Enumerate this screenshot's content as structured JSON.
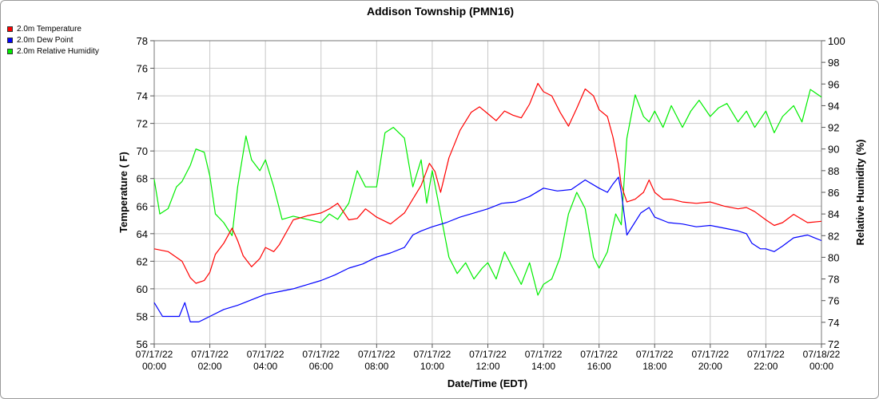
{
  "chart_data": {
    "type": "line",
    "title": "Addison Township (PMN16)",
    "xlabel": "Date/Time (EDT)",
    "ylabel": "Temperature ( F)",
    "y2label": "Relative Humidity (%)",
    "ylim": [
      56,
      78
    ],
    "y2lim": [
      72,
      100
    ],
    "x_ticks": [
      {
        "date": "07/17/22",
        "time": "00:00"
      },
      {
        "date": "07/17/22",
        "time": "02:00"
      },
      {
        "date": "07/17/22",
        "time": "04:00"
      },
      {
        "date": "07/17/22",
        "time": "06:00"
      },
      {
        "date": "07/17/22",
        "time": "08:00"
      },
      {
        "date": "07/17/22",
        "time": "10:00"
      },
      {
        "date": "07/17/22",
        "time": "12:00"
      },
      {
        "date": "07/17/22",
        "time": "14:00"
      },
      {
        "date": "07/17/22",
        "time": "16:00"
      },
      {
        "date": "07/17/22",
        "time": "18:00"
      },
      {
        "date": "07/17/22",
        "time": "20:00"
      },
      {
        "date": "07/17/22",
        "time": "22:00"
      },
      {
        "date": "07/18/22",
        "time": "00:00"
      }
    ],
    "y_ticks": [
      56,
      58,
      60,
      62,
      64,
      66,
      68,
      70,
      72,
      74,
      76,
      78
    ],
    "y2_ticks": [
      72,
      74,
      76,
      78,
      80,
      82,
      84,
      86,
      88,
      90,
      92,
      94,
      96,
      98,
      100
    ],
    "grid": true,
    "legend_position": "top-left",
    "x_unit": "hours",
    "series": [
      {
        "name": "2.0m Temperature",
        "color": "#ff0000",
        "axis": "left",
        "x": [
          0,
          0.5,
          1,
          1.3,
          1.5,
          1.8,
          2,
          2.2,
          2.5,
          2.8,
          3,
          3.2,
          3.5,
          3.8,
          4,
          4.3,
          4.5,
          5,
          5.5,
          6,
          6.3,
          6.6,
          7,
          7.3,
          7.6,
          8,
          8.5,
          9,
          9.3,
          9.6,
          9.9,
          10.1,
          10.3,
          10.6,
          11,
          11.4,
          11.7,
          12,
          12.3,
          12.6,
          12.9,
          13.2,
          13.5,
          13.8,
          14,
          14.3,
          14.6,
          14.9,
          15.2,
          15.5,
          15.8,
          16,
          16.3,
          16.5,
          16.7,
          16.8,
          17,
          17.3,
          17.6,
          17.8,
          18,
          18.3,
          18.6,
          19,
          19.5,
          20,
          20.5,
          21,
          21.3,
          21.6,
          22,
          22.3,
          22.6,
          23,
          23.5,
          24
        ],
        "values": [
          62.9,
          62.7,
          62.0,
          60.8,
          60.4,
          60.6,
          61.2,
          62.5,
          63.3,
          64.4,
          63.5,
          62.4,
          61.6,
          62.2,
          63.0,
          62.7,
          63.2,
          65.0,
          65.3,
          65.5,
          65.8,
          66.2,
          65.0,
          65.1,
          65.8,
          65.2,
          64.7,
          65.5,
          66.5,
          67.5,
          69.1,
          68.5,
          67.0,
          69.5,
          71.5,
          72.8,
          73.2,
          72.7,
          72.2,
          72.9,
          72.6,
          72.4,
          73.4,
          74.9,
          74.3,
          74.0,
          72.8,
          71.8,
          73.1,
          74.5,
          74.0,
          73.0,
          72.5,
          71.0,
          69.0,
          67.5,
          66.3,
          66.5,
          67.0,
          67.9,
          67.0,
          66.5,
          66.5,
          66.3,
          66.2,
          66.3,
          66.0,
          65.8,
          65.9,
          65.6,
          65.0,
          64.6,
          64.8,
          65.4,
          64.8,
          64.9
        ]
      },
      {
        "name": "2.0m Dew Point",
        "color": "#0000ff",
        "axis": "left",
        "x": [
          0,
          0.3,
          0.6,
          0.9,
          1.1,
          1.3,
          1.6,
          2,
          2.5,
          3,
          3.5,
          4,
          4.5,
          5,
          5.5,
          6,
          6.5,
          7,
          7.5,
          8,
          8.5,
          9,
          9.3,
          9.6,
          10,
          10.5,
          11,
          11.5,
          12,
          12.5,
          13,
          13.5,
          14,
          14.5,
          15,
          15.5,
          16,
          16.3,
          16.5,
          16.7,
          16.8,
          17,
          17.5,
          17.8,
          18,
          18.5,
          19,
          19.5,
          20,
          20.5,
          21,
          21.3,
          21.5,
          21.8,
          22,
          22.3,
          22.6,
          23,
          23.5,
          24
        ],
        "values": [
          59.0,
          58.0,
          58.0,
          58.0,
          59.0,
          57.6,
          57.6,
          58.0,
          58.5,
          58.8,
          59.2,
          59.6,
          59.8,
          60.0,
          60.3,
          60.6,
          61.0,
          61.5,
          61.8,
          62.3,
          62.6,
          63.0,
          63.9,
          64.2,
          64.5,
          64.8,
          65.2,
          65.5,
          65.8,
          66.2,
          66.3,
          66.7,
          67.3,
          67.1,
          67.2,
          67.9,
          67.3,
          67.0,
          67.6,
          68.1,
          67.0,
          63.9,
          65.5,
          65.9,
          65.2,
          64.8,
          64.7,
          64.5,
          64.6,
          64.4,
          64.2,
          64.0,
          63.3,
          62.9,
          62.9,
          62.7,
          63.1,
          63.7,
          63.9,
          63.5
        ]
      },
      {
        "name": "2.0m Relative Humidity",
        "color": "#00ee00",
        "axis": "right",
        "x": [
          0,
          0.2,
          0.5,
          0.8,
          1,
          1.3,
          1.5,
          1.8,
          2,
          2.2,
          2.5,
          2.8,
          3,
          3.3,
          3.5,
          3.8,
          4,
          4.3,
          4.6,
          5,
          5.5,
          6,
          6.3,
          6.6,
          7,
          7.3,
          7.6,
          8,
          8.3,
          8.6,
          9,
          9.3,
          9.6,
          9.8,
          10,
          10.3,
          10.6,
          10.9,
          11.2,
          11.5,
          11.8,
          12,
          12.3,
          12.6,
          12.9,
          13.2,
          13.5,
          13.8,
          14,
          14.3,
          14.6,
          14.9,
          15.2,
          15.5,
          15.8,
          16,
          16.3,
          16.6,
          16.8,
          17,
          17.3,
          17.6,
          17.8,
          18,
          18.3,
          18.6,
          19,
          19.3,
          19.6,
          20,
          20.3,
          20.6,
          21,
          21.3,
          21.6,
          22,
          22.3,
          22.6,
          23,
          23.3,
          23.6,
          24
        ],
        "values": [
          87.2,
          84.0,
          84.5,
          86.5,
          87.0,
          88.5,
          90.0,
          89.7,
          87.5,
          84.0,
          83.2,
          82.0,
          86.5,
          91.2,
          89.0,
          88.0,
          89.0,
          86.5,
          83.5,
          83.8,
          83.5,
          83.2,
          84.0,
          83.5,
          85.0,
          88.0,
          86.5,
          86.5,
          91.5,
          92.0,
          91.0,
          86.5,
          89.0,
          85.0,
          88.0,
          84.0,
          80.0,
          78.5,
          79.5,
          78.0,
          79.0,
          79.5,
          78.0,
          80.5,
          79.0,
          77.5,
          79.5,
          76.5,
          77.5,
          78.0,
          80.0,
          84.0,
          86.0,
          84.5,
          80.0,
          79.0,
          80.5,
          84.0,
          83.0,
          91.0,
          95.0,
          93.0,
          92.5,
          93.5,
          92.0,
          94.0,
          92.0,
          93.5,
          94.5,
          93.0,
          93.8,
          94.2,
          92.5,
          93.5,
          92.0,
          93.5,
          91.5,
          93.0,
          94.0,
          92.5,
          95.5,
          94.8
        ]
      }
    ]
  }
}
